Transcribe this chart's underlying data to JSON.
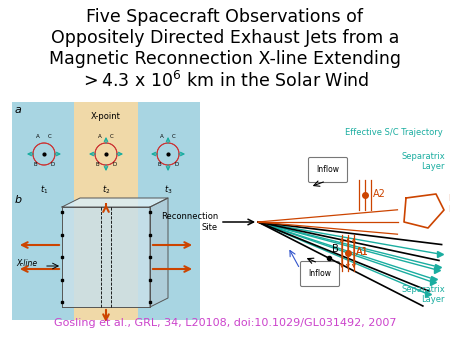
{
  "title_lines": [
    "Five Spacecraft Observations of",
    "Oppositely Directed Exhaust Jets from a",
    "Magnetic Reconnection X-line Extending"
  ],
  "title_line4_pre": "> 4.3 x 10",
  "title_line4_sup": "6",
  "title_line4_post": " km in the Solar Wind",
  "citation": "Gosling et al., GRL, 34, L20108, doi:10.1029/GL031492, 2007",
  "citation_color": "#cc44cc",
  "title_color": "#000000",
  "bg_color": "#ffffff",
  "title_fontsize": 12.5,
  "citation_fontsize": 8.0,
  "band_colors": [
    "#a8d5e2",
    "#f0d9a8",
    "#a8d5e2"
  ],
  "teal": "#1aada0",
  "orange_red": "#cc4400",
  "blue_arrow": "#3355cc"
}
